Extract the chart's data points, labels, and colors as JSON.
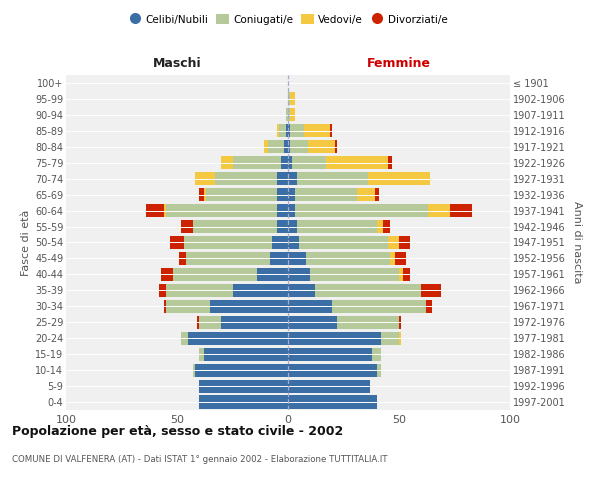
{
  "age_groups": [
    "0-4",
    "5-9",
    "10-14",
    "15-19",
    "20-24",
    "25-29",
    "30-34",
    "35-39",
    "40-44",
    "45-49",
    "50-54",
    "55-59",
    "60-64",
    "65-69",
    "70-74",
    "75-79",
    "80-84",
    "85-89",
    "90-94",
    "95-99",
    "100+"
  ],
  "birth_years": [
    "1997-2001",
    "1992-1996",
    "1987-1991",
    "1982-1986",
    "1977-1981",
    "1972-1976",
    "1967-1971",
    "1962-1966",
    "1957-1961",
    "1952-1956",
    "1947-1951",
    "1942-1946",
    "1937-1941",
    "1932-1936",
    "1927-1931",
    "1922-1926",
    "1917-1921",
    "1912-1916",
    "1907-1911",
    "1902-1906",
    "≤ 1901"
  ],
  "colors": {
    "celibi": "#3a6ea5",
    "coniugati": "#b5c99a",
    "vedovi": "#f5c842",
    "divorziati": "#cc2200"
  },
  "maschi": {
    "celibi": [
      40,
      40,
      42,
      38,
      45,
      30,
      35,
      25,
      14,
      8,
      7,
      5,
      5,
      5,
      5,
      3,
      2,
      1,
      0,
      0,
      0
    ],
    "coniugati": [
      0,
      0,
      1,
      2,
      3,
      10,
      20,
      30,
      38,
      38,
      40,
      38,
      50,
      32,
      28,
      22,
      7,
      3,
      1,
      0,
      0
    ],
    "vedovi": [
      0,
      0,
      0,
      0,
      0,
      0,
      0,
      0,
      0,
      0,
      0,
      0,
      1,
      1,
      9,
      5,
      2,
      1,
      0,
      0,
      0
    ],
    "divorziati": [
      0,
      0,
      0,
      0,
      0,
      1,
      1,
      3,
      5,
      3,
      6,
      5,
      8,
      2,
      0,
      0,
      0,
      0,
      0,
      0,
      0
    ]
  },
  "femmine": {
    "celibi": [
      40,
      37,
      40,
      38,
      42,
      22,
      20,
      12,
      10,
      8,
      5,
      4,
      3,
      3,
      4,
      2,
      1,
      1,
      0,
      0,
      0
    ],
    "coniugati": [
      0,
      0,
      2,
      4,
      8,
      28,
      42,
      48,
      40,
      38,
      40,
      36,
      60,
      28,
      32,
      15,
      8,
      6,
      1,
      1,
      0
    ],
    "vedovi": [
      0,
      0,
      0,
      0,
      1,
      0,
      0,
      0,
      2,
      2,
      5,
      3,
      10,
      8,
      28,
      28,
      12,
      12,
      2,
      2,
      0
    ],
    "divorziati": [
      0,
      0,
      0,
      0,
      0,
      1,
      3,
      9,
      3,
      5,
      5,
      3,
      10,
      2,
      0,
      2,
      1,
      1,
      0,
      0,
      0
    ]
  },
  "xlim": 100,
  "title": "Popolazione per età, sesso e stato civile - 2002",
  "subtitle": "COMUNE DI VALFENERA (AT) - Dati ISTAT 1° gennaio 2002 - Elaborazione TUTTITALIA.IT",
  "xlabel_left": "Maschi",
  "xlabel_right": "Femmine",
  "ylabel_left": "Fasce di età",
  "ylabel_right": "Anni di nascita",
  "legend_labels": [
    "Celibi/Nubili",
    "Coniugati/e",
    "Vedovi/e",
    "Divorziati/e"
  ],
  "bg_color": "#ffffff",
  "plot_bg": "#f0f0f0",
  "grid_color": "#ffffff"
}
